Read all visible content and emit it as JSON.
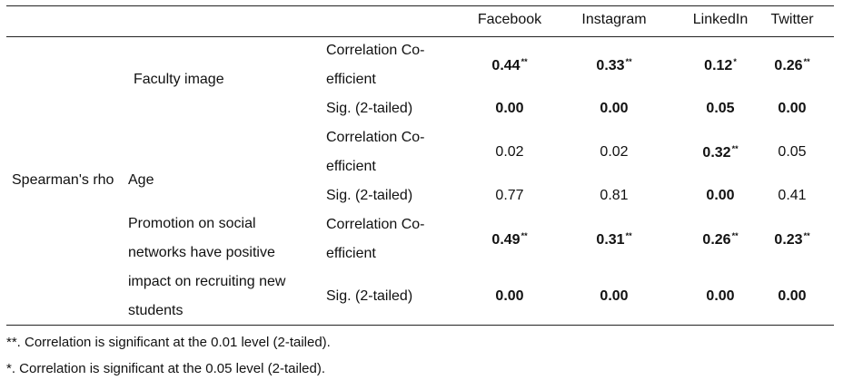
{
  "table": {
    "columns": [
      "Facebook",
      "Instagram",
      "LinkedIn",
      "Twitter"
    ],
    "row_group_label": "Spearman's rho",
    "stat_labels": {
      "coef_line1": "Correlation  Co-",
      "coef_line2": "efficient",
      "sig": "Sig. (2-tailed)"
    },
    "variables": [
      {
        "name": "Faculty image",
        "coef": [
          {
            "v": "0.44",
            "s": "**",
            "bold": true
          },
          {
            "v": "0.33",
            "s": "**",
            "bold": true
          },
          {
            "v": "0.12",
            "s": "*",
            "bold": true
          },
          {
            "v": "0.26",
            "s": "**",
            "bold": true
          }
        ],
        "sig": [
          {
            "v": "0.00",
            "s": "",
            "bold": true
          },
          {
            "v": "0.00",
            "s": "",
            "bold": true
          },
          {
            "v": "0.05",
            "s": "",
            "bold": true
          },
          {
            "v": "0.00",
            "s": "",
            "bold": true
          }
        ]
      },
      {
        "name": "Age",
        "coef": [
          {
            "v": "0.02",
            "s": "",
            "bold": false
          },
          {
            "v": "0.02",
            "s": "",
            "bold": false
          },
          {
            "v": "0.32",
            "s": "**",
            "bold": true
          },
          {
            "v": "0.05",
            "s": "",
            "bold": false
          }
        ],
        "sig": [
          {
            "v": "0.77",
            "s": "",
            "bold": false
          },
          {
            "v": "0.81",
            "s": "",
            "bold": false
          },
          {
            "v": "0.00",
            "s": "",
            "bold": true
          },
          {
            "v": "0.41",
            "s": "",
            "bold": false
          }
        ]
      },
      {
        "name": "Promotion on social networks have positive impact on recruiting new students",
        "coef": [
          {
            "v": "0.49",
            "s": "**",
            "bold": true
          },
          {
            "v": "0.31",
            "s": "**",
            "bold": true
          },
          {
            "v": "0.26",
            "s": "**",
            "bold": true
          },
          {
            "v": "0.23",
            "s": "**",
            "bold": true
          }
        ],
        "sig": [
          {
            "v": "0.00",
            "s": "",
            "bold": true
          },
          {
            "v": "0.00",
            "s": "",
            "bold": true
          },
          {
            "v": "0.00",
            "s": "",
            "bold": true
          },
          {
            "v": "0.00",
            "s": "",
            "bold": true
          }
        ]
      }
    ]
  },
  "footnotes": [
    "**. Correlation is significant at the 0.01 level (2-tailed).",
    "*. Correlation is significant at the 0.05 level (2-tailed)."
  ]
}
